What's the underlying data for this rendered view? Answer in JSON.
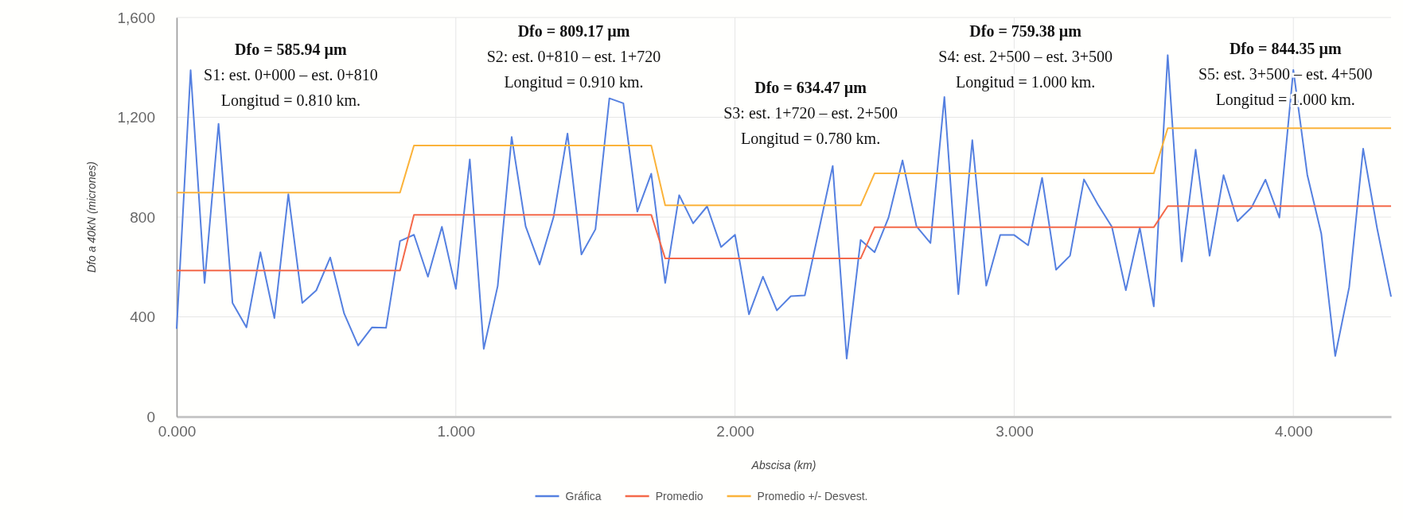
{
  "chart_data": {
    "type": "line",
    "xlabel": "Abscisa (km)",
    "ylabel": "Dfo a 40kN (micrones)",
    "xlim": [
      0,
      4.35
    ],
    "ylim": [
      0,
      1600
    ],
    "xticks": [
      {
        "value": 0,
        "label": "0.000"
      },
      {
        "value": 1,
        "label": "1.000"
      },
      {
        "value": 2,
        "label": "2.000"
      },
      {
        "value": 3,
        "label": "3.000"
      },
      {
        "value": 4,
        "label": "4.000"
      }
    ],
    "yticks": [
      0,
      400,
      800,
      {
        "value": 1200,
        "label": "1,200"
      },
      {
        "value": 1600,
        "label": "1,600"
      }
    ],
    "grid": true,
    "legend": "bottom",
    "line_style": "solid",
    "series": [
      {
        "name": "Gráfica",
        "color": "#5580e0",
        "x": [
          0,
          0.05,
          0.1,
          0.15,
          0.2,
          0.25,
          0.3,
          0.35,
          0.4,
          0.45,
          0.5,
          0.55,
          0.6,
          0.65,
          0.7,
          0.75,
          0.8,
          0.85,
          0.9,
          0.95,
          1,
          1.05,
          1.1,
          1.15,
          1.2,
          1.25,
          1.3,
          1.35,
          1.4,
          1.45,
          1.5,
          1.55,
          1.6,
          1.65,
          1.7,
          1.75,
          1.8,
          1.85,
          1.9,
          1.95,
          2,
          2.05,
          2.1,
          2.15,
          2.2,
          2.25,
          2.3,
          2.35,
          2.4,
          2.45,
          2.5,
          2.55,
          2.6,
          2.65,
          2.7,
          2.75,
          2.8,
          2.85,
          2.9,
          2.95,
          3,
          3.05,
          3.1,
          3.15,
          3.2,
          3.25,
          3.3,
          3.35,
          3.4,
          3.45,
          3.5,
          3.55,
          3.6,
          3.65,
          3.7,
          3.75,
          3.8,
          3.85,
          3.9,
          3.95,
          4,
          4.05,
          4.1,
          4.15,
          4.2,
          4.25,
          4.3,
          4.35
        ],
        "values": [
          352,
          1389,
          536,
          1174,
          456,
          358,
          659,
          395,
          892,
          456,
          506,
          638,
          413,
          285,
          358,
          356,
          704,
          729,
          561,
          761,
          512,
          1031,
          272,
          524,
          1121,
          763,
          610,
          800,
          1135,
          650,
          751,
          1276,
          1256,
          822,
          974,
          536,
          888,
          775,
          843,
          680,
          729,
          410,
          561,
          426,
          483,
          486,
          745,
          1005,
          233,
          708,
          659,
          798,
          1027,
          763,
          696,
          1281,
          491,
          1108,
          525,
          728,
          728,
          687,
          957,
          589,
          645,
          951,
          850,
          761,
          507,
          757,
          442,
          1449,
          622,
          1070,
          645,
          968,
          783,
          838,
          950,
          798,
          1390,
          969,
          734,
          243,
          519,
          1074,
          755,
          481
        ]
      },
      {
        "name": "Promedio",
        "color": "#f4694a",
        "x": [
          0,
          0.8,
          0.85,
          1.7,
          1.75,
          2.45,
          2.5,
          3.5,
          3.55,
          4.35
        ],
        "values": [
          586,
          586,
          809,
          809,
          634,
          634,
          759,
          759,
          844,
          844
        ]
      },
      {
        "name": "Promedio +/- Desvest.",
        "color": "#fbb33a",
        "x": [
          0,
          0.8,
          0.85,
          1.7,
          1.75,
          2.45,
          2.5,
          3.5,
          3.55,
          4.35
        ],
        "values": [
          898,
          898,
          1087,
          1087,
          847,
          847,
          975,
          975,
          1156,
          1156
        ]
      }
    ],
    "annotations": [
      "Dfo = 585.94 µm\nS1: est. 0+000 – est. 0+810\nLongitud = 0.810 km.",
      "Dfo = 809.17 µm\nS2: est. 0+810 – est. 1+720\nLongitud = 0.910 km.",
      "Dfo = 634.47 µm\nS3: est. 1+720 – est. 2+500\nLongitud = 0.780 km.",
      "Dfo = 759.38 µm\nS4: est. 2+500 – est. 3+500\nLongitud = 1.000 km.",
      "Dfo = 844.35 µm\nS5: est. 3+500 – est. 4+500\nLongitud = 1.000 km."
    ]
  }
}
